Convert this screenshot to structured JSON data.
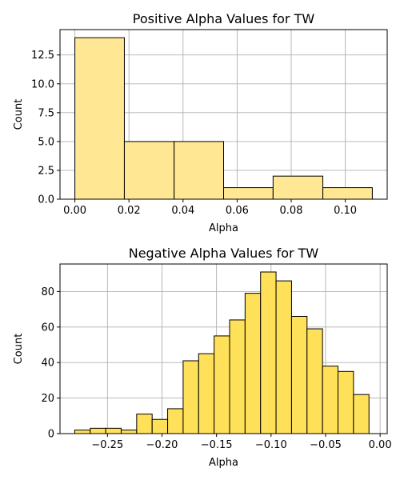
{
  "chart_data": [
    {
      "type": "bar",
      "title": "Positive Alpha Values for TW",
      "xlabel": "Alpha",
      "ylabel": "Count",
      "xlim": [
        -0.0055,
        0.1155
      ],
      "ylim": [
        0,
        14.7
      ],
      "xticks": [
        0.0,
        0.02,
        0.04,
        0.06,
        0.08,
        0.1
      ],
      "xtick_labels": [
        "0.00",
        "0.02",
        "0.04",
        "0.06",
        "0.08",
        "0.10"
      ],
      "yticks": [
        0,
        2.5,
        5.0,
        7.5,
        10.0,
        12.5
      ],
      "ytick_labels": [
        "0.0",
        "2.5",
        "5.0",
        "7.5",
        "10.0",
        "12.5"
      ],
      "grid": true,
      "color": "#ffe794",
      "bins": [
        {
          "x0": 0.0,
          "x1": 0.0183,
          "count": 14
        },
        {
          "x0": 0.0183,
          "x1": 0.0367,
          "count": 5
        },
        {
          "x0": 0.0367,
          "x1": 0.055,
          "count": 5
        },
        {
          "x0": 0.055,
          "x1": 0.0733,
          "count": 1
        },
        {
          "x0": 0.0733,
          "x1": 0.0917,
          "count": 2
        },
        {
          "x0": 0.0917,
          "x1": 0.11,
          "count": 1
        }
      ]
    },
    {
      "type": "bar",
      "title": "Negative Alpha Values for TW",
      "xlabel": "Alpha",
      "ylabel": "Count",
      "xlim": [
        -0.2935,
        0.0065
      ],
      "ylim": [
        0,
        95.5
      ],
      "xticks": [
        -0.25,
        -0.2,
        -0.15,
        -0.1,
        -0.05,
        0.0
      ],
      "xtick_labels": [
        "−0.25",
        "−0.20",
        "−0.15",
        "−0.10",
        "−0.05",
        "0.00"
      ],
      "yticks": [
        0,
        20,
        40,
        60,
        80
      ],
      "ytick_labels": [
        "0",
        "20",
        "40",
        "60",
        "80"
      ],
      "grid": true,
      "color": "#ffe059",
      "bins": [
        {
          "x0": -0.28,
          "x1": -0.2658,
          "count": 2
        },
        {
          "x0": -0.2658,
          "x1": -0.2516,
          "count": 3
        },
        {
          "x0": -0.2516,
          "x1": -0.2374,
          "count": 3
        },
        {
          "x0": -0.2374,
          "x1": -0.2232,
          "count": 2
        },
        {
          "x0": -0.2232,
          "x1": -0.209,
          "count": 11
        },
        {
          "x0": -0.209,
          "x1": -0.1948,
          "count": 8
        },
        {
          "x0": -0.1948,
          "x1": -0.1806,
          "count": 14
        },
        {
          "x0": -0.1806,
          "x1": -0.1664,
          "count": 41
        },
        {
          "x0": -0.1664,
          "x1": -0.1522,
          "count": 45
        },
        {
          "x0": -0.1522,
          "x1": -0.138,
          "count": 55
        },
        {
          "x0": -0.138,
          "x1": -0.1238,
          "count": 64
        },
        {
          "x0": -0.1238,
          "x1": -0.1096,
          "count": 79
        },
        {
          "x0": -0.1096,
          "x1": -0.0954,
          "count": 91
        },
        {
          "x0": -0.0954,
          "x1": -0.0812,
          "count": 86
        },
        {
          "x0": -0.0812,
          "x1": -0.067,
          "count": 66
        },
        {
          "x0": -0.067,
          "x1": -0.0528,
          "count": 59
        },
        {
          "x0": -0.0528,
          "x1": -0.0386,
          "count": 38
        },
        {
          "x0": -0.0386,
          "x1": -0.0244,
          "count": 35
        },
        {
          "x0": -0.0244,
          "x1": -0.0102,
          "count": 22
        }
      ]
    }
  ]
}
